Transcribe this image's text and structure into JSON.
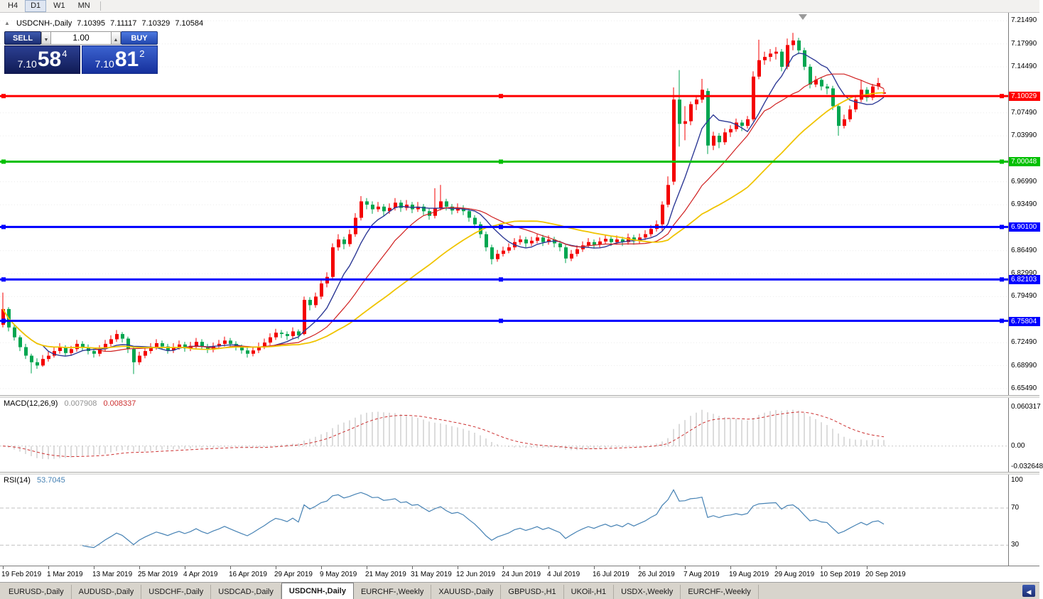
{
  "toolbar": {
    "timeframes": [
      "H4",
      "D1",
      "W1",
      "MN"
    ],
    "active": "D1"
  },
  "quote_header": {
    "symbol": "USDCNH-,Daily",
    "open": "7.10395",
    "high": "7.11117",
    "low": "7.10329",
    "close": "7.10584"
  },
  "trade_panel": {
    "sell_label": "SELL",
    "buy_label": "BUY",
    "volume": "1.00",
    "sell_price": {
      "base": "7.10",
      "pips": "58",
      "frac": "4"
    },
    "buy_price": {
      "base": "7.10",
      "pips": "81",
      "frac": "2"
    }
  },
  "chart_data": {
    "type": "candlestick",
    "symbol": "USDCNH-,Daily",
    "ylim": [
      6.645,
      7.225
    ],
    "y_axis_labels": [
      "7.21490",
      "7.17990",
      "7.14490",
      "7.07490",
      "7.03990",
      "6.96990",
      "6.93490",
      "6.86490",
      "6.82990",
      "6.79490",
      "6.72490",
      "6.68990",
      "6.65490"
    ],
    "x_labels": [
      "19 Feb 2019",
      "1 Mar 2019",
      "13 Mar 2019",
      "25 Mar 2019",
      "4 Apr 2019",
      "16 Apr 2019",
      "29 Apr 2019",
      "9 May 2019",
      "21 May 2019",
      "31 May 2019",
      "12 Jun 2019",
      "24 Jun 2019",
      "4 Jul 2019",
      "16 Jul 2019",
      "26 Jul 2019",
      "7 Aug 2019",
      "19 Aug 2019",
      "29 Aug 2019",
      "10 Sep 2019",
      "20 Sep 2019"
    ],
    "label_step": 8,
    "bull_color": "#f40000",
    "bear_color": "#00a650",
    "hlines": [
      {
        "price": 7.10029,
        "label": "7.10029",
        "color": "#ff0000"
      },
      {
        "price": 7.00048,
        "label": "7.00048",
        "color": "#00c000"
      },
      {
        "price": 6.901,
        "label": "6.90100",
        "color": "#0000ff"
      },
      {
        "price": 6.82103,
        "label": "6.82103",
        "color": "#0000ff"
      },
      {
        "price": 6.75804,
        "label": "6.75804",
        "color": "#0000ff"
      }
    ],
    "moving_averages": [
      {
        "period": 8,
        "color": "#2e3a96"
      },
      {
        "period": 17,
        "color": "#d02020"
      },
      {
        "period": 33,
        "color": "#f0c400"
      }
    ],
    "candles": [
      [
        6.752,
        6.801,
        6.748,
        6.776
      ],
      [
        6.776,
        6.779,
        6.742,
        6.748
      ],
      [
        6.748,
        6.751,
        6.728,
        6.733
      ],
      [
        6.733,
        6.736,
        6.712,
        6.718
      ],
      [
        6.718,
        6.723,
        6.7,
        6.705
      ],
      [
        6.705,
        6.708,
        6.678,
        6.695
      ],
      [
        6.695,
        6.701,
        6.685,
        6.69
      ],
      [
        6.69,
        6.706,
        6.688,
        6.7
      ],
      [
        6.7,
        6.711,
        6.696,
        6.705
      ],
      [
        6.705,
        6.718,
        6.702,
        6.712
      ],
      [
        6.712,
        6.724,
        6.708,
        6.718
      ],
      [
        6.718,
        6.721,
        6.704,
        6.709
      ],
      [
        6.709,
        6.72,
        6.705,
        6.715
      ],
      [
        6.715,
        6.729,
        6.711,
        6.723
      ],
      [
        6.723,
        6.727,
        6.713,
        6.718
      ],
      [
        6.718,
        6.722,
        6.707,
        6.712
      ],
      [
        6.712,
        6.716,
        6.702,
        6.708
      ],
      [
        6.708,
        6.721,
        6.704,
        6.715
      ],
      [
        6.715,
        6.729,
        6.711,
        6.723
      ],
      [
        6.723,
        6.736,
        6.719,
        6.73
      ],
      [
        6.73,
        6.744,
        6.726,
        6.738
      ],
      [
        6.738,
        6.741,
        6.725,
        6.731
      ],
      [
        6.731,
        6.734,
        6.709,
        6.715
      ],
      [
        6.715,
        6.718,
        6.677,
        6.695
      ],
      [
        6.695,
        6.711,
        6.691,
        6.705
      ],
      [
        6.705,
        6.718,
        6.701,
        6.712
      ],
      [
        6.712,
        6.724,
        6.708,
        6.718
      ],
      [
        6.718,
        6.73,
        6.714,
        6.724
      ],
      [
        6.724,
        6.728,
        6.714,
        6.719
      ],
      [
        6.719,
        6.723,
        6.708,
        6.713
      ],
      [
        6.713,
        6.724,
        6.709,
        6.718
      ],
      [
        6.718,
        6.728,
        6.714,
        6.722
      ],
      [
        6.722,
        6.726,
        6.711,
        6.716
      ],
      [
        6.716,
        6.726,
        6.712,
        6.72
      ],
      [
        6.72,
        6.732,
        6.716,
        6.726
      ],
      [
        6.726,
        6.73,
        6.714,
        6.719
      ],
      [
        6.719,
        6.723,
        6.709,
        6.714
      ],
      [
        6.714,
        6.725,
        6.71,
        6.719
      ],
      [
        6.719,
        6.729,
        6.715,
        6.723
      ],
      [
        6.723,
        6.734,
        6.719,
        6.728
      ],
      [
        6.728,
        6.732,
        6.718,
        6.723
      ],
      [
        6.723,
        6.727,
        6.713,
        6.718
      ],
      [
        6.718,
        6.722,
        6.708,
        6.713
      ],
      [
        6.713,
        6.717,
        6.702,
        6.708
      ],
      [
        6.708,
        6.719,
        6.704,
        6.713
      ],
      [
        6.713,
        6.725,
        6.709,
        6.719
      ],
      [
        6.719,
        6.731,
        6.715,
        6.725
      ],
      [
        6.725,
        6.739,
        6.721,
        6.733
      ],
      [
        6.733,
        6.746,
        6.729,
        6.74
      ],
      [
        6.74,
        6.744,
        6.732,
        6.738
      ],
      [
        6.738,
        6.742,
        6.729,
        6.735
      ],
      [
        6.735,
        6.748,
        6.731,
        6.742
      ],
      [
        6.742,
        6.745,
        6.73,
        6.736
      ],
      [
        6.738,
        6.795,
        6.736,
        6.79
      ],
      [
        6.79,
        6.794,
        6.774,
        6.782
      ],
      [
        6.782,
        6.801,
        6.778,
        6.795
      ],
      [
        6.795,
        6.821,
        6.791,
        6.815
      ],
      [
        6.815,
        6.832,
        6.809,
        6.825
      ],
      [
        6.825,
        6.876,
        6.821,
        6.87
      ],
      [
        6.87,
        6.89,
        6.865,
        6.882
      ],
      [
        6.882,
        6.886,
        6.867,
        6.875
      ],
      [
        6.875,
        6.897,
        6.871,
        6.89
      ],
      [
        6.89,
        6.922,
        6.886,
        6.915
      ],
      [
        6.915,
        6.948,
        6.911,
        6.94
      ],
      [
        6.94,
        6.945,
        6.928,
        6.935
      ],
      [
        6.935,
        6.94,
        6.921,
        6.928
      ],
      [
        6.928,
        6.939,
        6.924,
        6.932
      ],
      [
        6.932,
        6.936,
        6.918,
        6.925
      ],
      [
        6.925,
        6.937,
        6.921,
        6.93
      ],
      [
        6.93,
        6.945,
        6.926,
        6.938
      ],
      [
        6.938,
        6.942,
        6.924,
        6.93
      ],
      [
        6.93,
        6.942,
        6.926,
        6.935
      ],
      [
        6.935,
        6.939,
        6.922,
        6.928
      ],
      [
        6.928,
        6.939,
        6.924,
        6.932
      ],
      [
        6.932,
        6.936,
        6.919,
        6.925
      ],
      [
        6.925,
        6.929,
        6.912,
        6.918
      ],
      [
        6.918,
        6.96,
        6.914,
        6.93
      ],
      [
        6.93,
        6.965,
        6.926,
        6.94
      ],
      [
        6.94,
        6.944,
        6.926,
        6.932
      ],
      [
        6.932,
        6.936,
        6.92,
        6.926
      ],
      [
        6.926,
        6.937,
        6.922,
        6.93
      ],
      [
        6.93,
        6.934,
        6.919,
        6.925
      ],
      [
        6.925,
        6.929,
        6.909,
        6.915
      ],
      [
        6.915,
        6.919,
        6.899,
        6.905
      ],
      [
        6.905,
        6.909,
        6.884,
        6.89
      ],
      [
        6.89,
        6.894,
        6.864,
        6.87
      ],
      [
        6.87,
        6.874,
        6.844,
        6.852
      ],
      [
        6.852,
        6.866,
        6.848,
        6.86
      ],
      [
        6.86,
        6.871,
        6.856,
        6.865
      ],
      [
        6.865,
        6.876,
        6.861,
        6.87
      ],
      [
        6.87,
        6.884,
        6.866,
        6.878
      ],
      [
        6.878,
        6.888,
        6.874,
        6.882
      ],
      [
        6.882,
        6.886,
        6.87,
        6.876
      ],
      [
        6.876,
        6.886,
        6.872,
        6.88
      ],
      [
        6.88,
        6.891,
        6.876,
        6.885
      ],
      [
        6.885,
        6.889,
        6.872,
        6.878
      ],
      [
        6.878,
        6.888,
        6.874,
        6.882
      ],
      [
        6.882,
        6.886,
        6.87,
        6.876
      ],
      [
        6.876,
        6.88,
        6.864,
        6.87
      ],
      [
        6.87,
        6.874,
        6.846,
        6.853
      ],
      [
        6.853,
        6.866,
        6.849,
        6.86
      ],
      [
        6.86,
        6.873,
        6.856,
        6.867
      ],
      [
        6.867,
        6.879,
        6.863,
        6.873
      ],
      [
        6.873,
        6.884,
        6.869,
        6.878
      ],
      [
        6.878,
        6.882,
        6.868,
        6.874
      ],
      [
        6.874,
        6.885,
        6.87,
        6.879
      ],
      [
        6.879,
        6.889,
        6.875,
        6.883
      ],
      [
        6.883,
        6.887,
        6.872,
        6.878
      ],
      [
        6.878,
        6.888,
        6.874,
        6.882
      ],
      [
        6.882,
        6.886,
        6.872,
        6.878
      ],
      [
        6.878,
        6.891,
        6.874,
        6.885
      ],
      [
        6.885,
        6.889,
        6.874,
        6.88
      ],
      [
        6.88,
        6.891,
        6.876,
        6.885
      ],
      [
        6.885,
        6.896,
        6.881,
        6.89
      ],
      [
        6.89,
        6.904,
        6.886,
        6.898
      ],
      [
        6.898,
        6.911,
        6.894,
        6.905
      ],
      [
        6.905,
        6.94,
        6.895,
        6.935
      ],
      [
        6.935,
        6.978,
        6.931,
        6.965
      ],
      [
        6.97,
        7.1135,
        6.965,
        7.095
      ],
      [
        7.095,
        7.1399,
        7.0235,
        7.058
      ],
      [
        7.058,
        7.085,
        7.033,
        7.062
      ],
      [
        7.062,
        7.092,
        7.056,
        7.088
      ],
      [
        7.088,
        7.101,
        7.079,
        7.095
      ],
      [
        7.095,
        7.1265,
        7.09,
        7.11
      ],
      [
        7.108,
        7.112,
        7.012,
        7.025
      ],
      [
        7.025,
        7.046,
        7.018,
        7.04
      ],
      [
        7.04,
        7.044,
        7.021,
        7.03
      ],
      [
        7.03,
        7.051,
        7.026,
        7.045
      ],
      [
        7.045,
        7.056,
        7.038,
        7.05
      ],
      [
        7.05,
        7.066,
        7.046,
        7.06
      ],
      [
        7.06,
        7.064,
        7.047,
        7.055
      ],
      [
        7.055,
        7.07,
        7.051,
        7.065
      ],
      [
        7.065,
        7.138,
        7.062,
        7.13
      ],
      [
        7.13,
        7.1862,
        7.126,
        7.155
      ],
      [
        7.155,
        7.168,
        7.148,
        7.16
      ],
      [
        7.16,
        7.172,
        7.153,
        7.165
      ],
      [
        7.165,
        7.175,
        7.156,
        7.168
      ],
      [
        7.168,
        7.172,
        7.138,
        7.145
      ],
      [
        7.145,
        7.188,
        7.141,
        7.178
      ],
      [
        7.178,
        7.1965,
        7.17,
        7.185
      ],
      [
        7.185,
        7.189,
        7.164,
        7.17
      ],
      [
        7.17,
        7.174,
        7.14,
        7.145
      ],
      [
        7.145,
        7.149,
        7.112,
        7.118
      ],
      [
        7.118,
        7.131,
        7.114,
        7.125
      ],
      [
        7.125,
        7.129,
        7.109,
        7.115
      ],
      [
        7.115,
        7.119,
        7.103,
        7.112
      ],
      [
        7.112,
        7.116,
        7.079,
        7.085
      ],
      [
        7.085,
        7.089,
        7.04,
        7.055
      ],
      [
        7.055,
        7.072,
        7.051,
        7.065
      ],
      [
        7.065,
        7.086,
        7.061,
        7.08
      ],
      [
        7.08,
        7.101,
        7.076,
        7.095
      ],
      [
        7.095,
        7.125,
        7.091,
        7.11
      ],
      [
        7.11,
        7.114,
        7.092,
        7.098
      ],
      [
        7.098,
        7.119,
        7.094,
        7.115
      ],
      [
        7.115,
        7.128,
        7.11,
        7.12
      ],
      [
        7.10395,
        7.11117,
        7.10329,
        7.10584
      ]
    ],
    "macd": {
      "title": "MACD(12,26,9)",
      "fast": 12,
      "slow": 26,
      "signal": 9,
      "value_main": "0.007908",
      "value_signal": "0.008337",
      "axis_labels": [
        "0.060317",
        "0.00",
        "-0.032648"
      ],
      "ylim": [
        -0.04,
        0.075
      ],
      "hist_color": "#b9b9b9",
      "signal_color": "#cc2f2f"
    },
    "rsi": {
      "title": "RSI(14)",
      "period": 14,
      "value": "53.7045",
      "levels": [
        70,
        30
      ],
      "axis_labels": [
        "100",
        "70",
        "30"
      ],
      "ylim": [
        8,
        106
      ],
      "line_color": "#4682b4",
      "level_color": "#c0c0c0"
    }
  },
  "tabs": {
    "items": [
      {
        "label": "EURUSD-,Daily",
        "active": false
      },
      {
        "label": "AUDUSD-,Daily",
        "active": false
      },
      {
        "label": "USDCHF-,Daily",
        "active": false
      },
      {
        "label": "USDCAD-,Daily",
        "active": false
      },
      {
        "label": "USDCNH-,Daily",
        "active": true
      },
      {
        "label": "EURCHF-,Weekly",
        "active": false
      },
      {
        "label": "XAUUSD-,Daily",
        "active": false
      },
      {
        "label": "GBPUSD-,H1",
        "active": false
      },
      {
        "label": "UKOil-,H1",
        "active": false
      },
      {
        "label": "USDX-,Weekly",
        "active": false
      },
      {
        "label": "EURCHF-,Weekly",
        "active": false
      }
    ]
  }
}
